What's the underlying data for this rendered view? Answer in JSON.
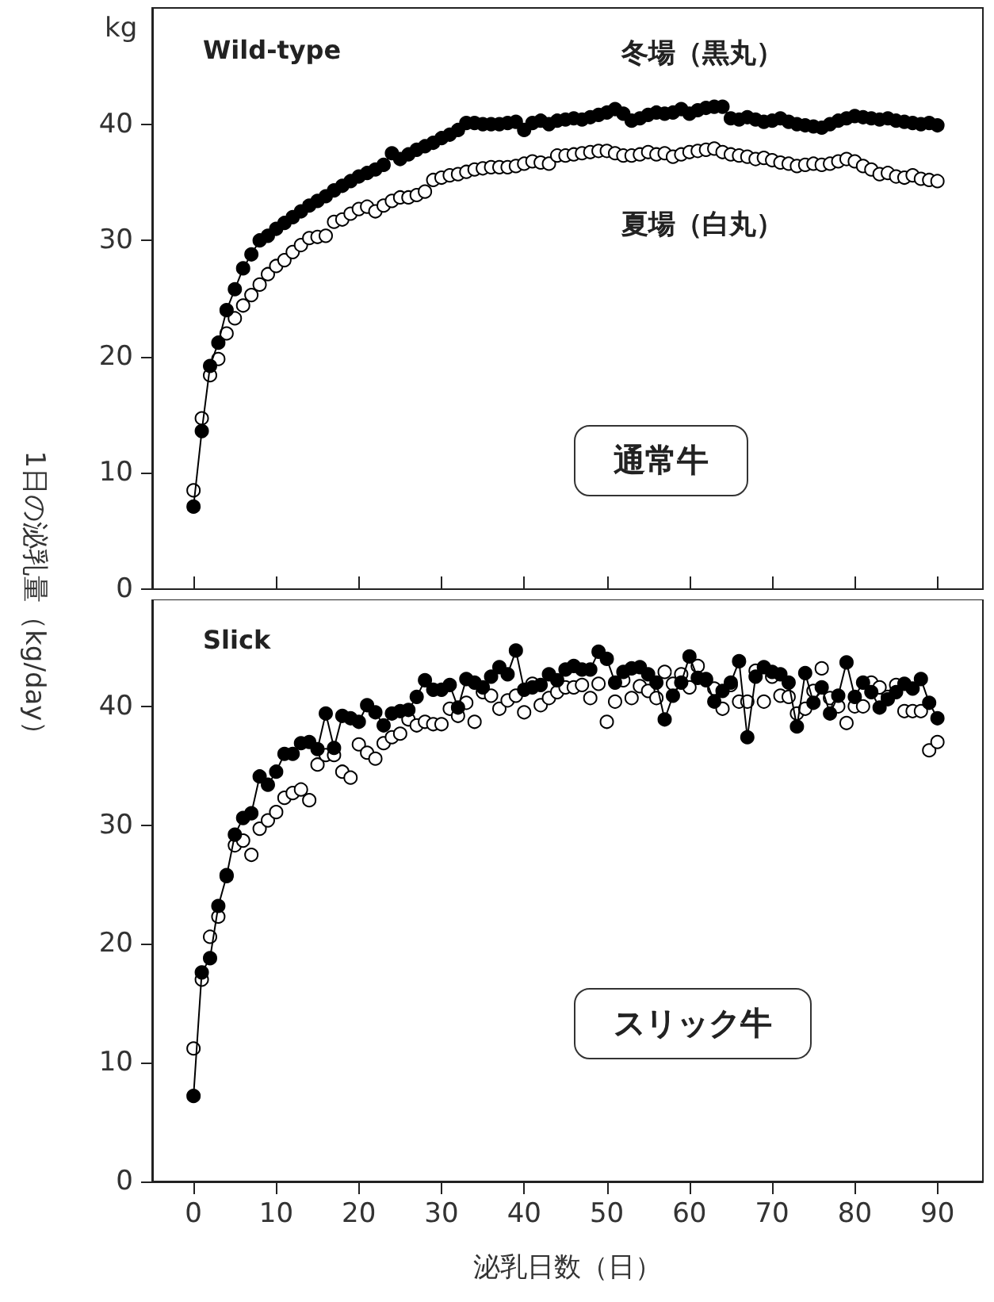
{
  "chart_data": [
    {
      "type": "line",
      "ylabel": "kg",
      "annotations": [
        "Wild-type",
        "通常牛"
      ],
      "x": [
        0,
        1,
        2,
        3,
        4,
        5,
        6,
        7,
        8,
        9,
        10,
        11,
        12,
        13,
        14,
        15,
        16,
        17,
        18,
        19,
        20,
        21,
        22,
        23,
        24,
        25,
        26,
        27,
        28,
        29,
        30,
        31,
        32,
        33,
        34,
        35,
        36,
        37,
        38,
        39,
        40,
        41,
        42,
        43,
        44,
        45,
        46,
        47,
        48,
        49,
        50,
        51,
        52,
        53,
        54,
        55,
        56,
        57,
        58,
        59,
        60,
        61,
        62,
        63,
        64,
        65,
        66,
        67,
        68,
        69,
        70,
        71,
        72,
        73,
        74,
        75,
        76,
        77,
        78,
        79,
        80,
        81,
        82,
        83,
        84,
        85,
        86,
        87,
        88,
        89,
        90
      ],
      "xlim": [
        -5,
        95.5
      ],
      "xticks": [
        0,
        10,
        20,
        30,
        40,
        50,
        60,
        70,
        80,
        90
      ],
      "ylim": [
        0,
        50
      ],
      "yticks": [
        0,
        10,
        20,
        30,
        40
      ],
      "tick_labels": "y",
      "marker": "circle",
      "line_style": "solid",
      "grid": false,
      "legend": false,
      "series": [
        {
          "name": "冬場（黒丸）",
          "color": "#000000",
          "values": [
            7.1,
            13.6,
            19.2,
            21.2,
            24.0,
            25.8,
            27.6,
            28.8,
            30.0,
            30.4,
            31.0,
            31.5,
            32.0,
            32.5,
            33.0,
            33.4,
            33.8,
            34.3,
            34.7,
            35.1,
            35.5,
            35.8,
            36.1,
            36.5,
            37.5,
            37.0,
            37.4,
            37.8,
            38.1,
            38.4,
            38.8,
            39.1,
            39.5,
            40.1,
            40.1,
            40.0,
            40.0,
            40.0,
            40.1,
            40.2,
            39.5,
            40.1,
            40.3,
            40.0,
            40.3,
            40.4,
            40.5,
            40.4,
            40.6,
            40.8,
            41.0,
            41.3,
            40.9,
            40.3,
            40.5,
            40.8,
            41.0,
            40.9,
            41.0,
            41.3,
            40.9,
            41.2,
            41.4,
            41.5,
            41.5,
            40.5,
            40.4,
            40.6,
            40.4,
            40.2,
            40.3,
            40.5,
            40.2,
            40.0,
            39.9,
            39.8,
            39.7,
            40.0,
            40.3,
            40.5,
            40.7,
            40.6,
            40.5,
            40.4,
            40.5,
            40.3,
            40.2,
            40.1,
            40.0,
            40.1,
            39.9
          ]
        },
        {
          "name": "夏場（白丸）",
          "type": "scatter",
          "color": "#ffffff",
          "values": [
            8.5,
            14.7,
            18.4,
            19.8,
            22.0,
            23.3,
            24.4,
            25.3,
            26.2,
            27.1,
            27.8,
            28.3,
            29.0,
            29.6,
            30.2,
            30.3,
            30.4,
            31.6,
            31.8,
            32.3,
            32.7,
            32.9,
            32.5,
            33.0,
            33.4,
            33.7,
            33.7,
            33.9,
            34.2,
            35.2,
            35.4,
            35.6,
            35.7,
            35.9,
            36.1,
            36.2,
            36.3,
            36.3,
            36.3,
            36.4,
            36.6,
            36.8,
            36.7,
            36.6,
            37.3,
            37.3,
            37.4,
            37.5,
            37.6,
            37.7,
            37.7,
            37.5,
            37.3,
            37.3,
            37.4,
            37.6,
            37.4,
            37.5,
            37.2,
            37.4,
            37.6,
            37.7,
            37.8,
            37.9,
            37.6,
            37.4,
            37.3,
            37.2,
            37.0,
            37.1,
            36.9,
            36.7,
            36.6,
            36.4,
            36.5,
            36.6,
            36.5,
            36.6,
            36.8,
            37.0,
            36.8,
            36.4,
            36.1,
            35.7,
            35.8,
            35.5,
            35.4,
            35.6,
            35.3,
            35.2,
            35.1
          ]
        }
      ]
    },
    {
      "type": "line",
      "xlabel": "泌乳日数（日）",
      "ylabel": "1日の泌乳量（kg/day）",
      "annotations": [
        "Slick",
        "スリック牛"
      ],
      "x": [
        0,
        1,
        2,
        3,
        4,
        5,
        6,
        7,
        8,
        9,
        10,
        11,
        12,
        13,
        14,
        15,
        16,
        17,
        18,
        19,
        20,
        21,
        22,
        23,
        24,
        25,
        26,
        27,
        28,
        29,
        30,
        31,
        32,
        33,
        34,
        35,
        36,
        37,
        38,
        39,
        40,
        41,
        42,
        43,
        44,
        45,
        46,
        47,
        48,
        49,
        50,
        51,
        52,
        53,
        54,
        55,
        56,
        57,
        58,
        59,
        60,
        61,
        62,
        63,
        64,
        65,
        66,
        67,
        68,
        69,
        70,
        71,
        72,
        73,
        74,
        75,
        76,
        77,
        78,
        79,
        80,
        81,
        82,
        83,
        84,
        85,
        86,
        87,
        88,
        89,
        90
      ],
      "xlim": [
        -5,
        95.5
      ],
      "xticks": [
        0,
        10,
        20,
        30,
        40,
        50,
        60,
        70,
        80,
        90
      ],
      "ylim": [
        0,
        49
      ],
      "yticks": [
        0,
        10,
        20,
        30,
        40
      ],
      "marker": "circle",
      "line_style": "solid",
      "grid": false,
      "legend": false,
      "series": [
        {
          "color": "#000000",
          "values": [
            7.2,
            17.6,
            18.8,
            23.2,
            25.7,
            29.2,
            30.6,
            31.0,
            34.1,
            33.4,
            34.5,
            36.0,
            36.0,
            36.9,
            37.0,
            36.4,
            39.4,
            36.5,
            39.2,
            39.0,
            38.7,
            40.1,
            39.5,
            38.4,
            39.4,
            39.6,
            39.7,
            40.8,
            42.2,
            41.4,
            41.4,
            41.8,
            39.9,
            42.3,
            42.0,
            41.6,
            42.5,
            43.3,
            42.7,
            44.7,
            41.4,
            41.6,
            41.8,
            42.7,
            42.2,
            43.1,
            43.4,
            43.1,
            43.1,
            44.6,
            44.0,
            42.0,
            42.9,
            43.2,
            43.3,
            42.7,
            42.0,
            38.9,
            40.9,
            42.0,
            44.2,
            42.4,
            42.2,
            40.4,
            41.3,
            42.0,
            43.8,
            37.4,
            42.5,
            43.3,
            42.9,
            42.7,
            42.0,
            38.3,
            42.8,
            40.3,
            41.6,
            39.4,
            40.9,
            43.7,
            40.8,
            42.0,
            41.2,
            39.9,
            40.6,
            41.2,
            41.9,
            41.5,
            42.3,
            40.3,
            39.0
          ]
        },
        {
          "type": "scatter",
          "color": "#ffffff",
          "values": [
            11.2,
            17.0,
            20.6,
            22.3,
            25.8,
            28.3,
            28.7,
            27.5,
            29.7,
            30.4,
            31.1,
            32.3,
            32.7,
            33.0,
            32.1,
            35.1,
            35.9,
            35.9,
            34.5,
            34.0,
            36.8,
            36.1,
            35.6,
            36.9,
            37.4,
            37.7,
            38.9,
            38.4,
            38.7,
            38.5,
            38.5,
            39.8,
            39.2,
            40.3,
            38.7,
            41.2,
            40.9,
            39.8,
            40.5,
            40.9,
            39.5,
            41.9,
            40.1,
            40.7,
            41.2,
            41.6,
            41.6,
            41.8,
            40.7,
            41.9,
            38.7,
            40.4,
            42.2,
            40.7,
            41.7,
            41.3,
            40.7,
            42.9,
            41.9,
            42.7,
            41.6,
            43.4,
            42.3,
            41.5,
            39.8,
            41.8,
            40.4,
            40.4,
            43.0,
            40.4,
            42.5,
            40.9,
            40.8,
            39.4,
            39.8,
            41.3,
            43.2,
            40.7,
            40.0,
            38.6,
            40.0,
            40.0,
            42.0,
            41.6,
            40.8,
            41.8,
            39.6,
            39.6,
            39.6,
            36.3,
            37.0
          ]
        }
      ]
    }
  ]
}
